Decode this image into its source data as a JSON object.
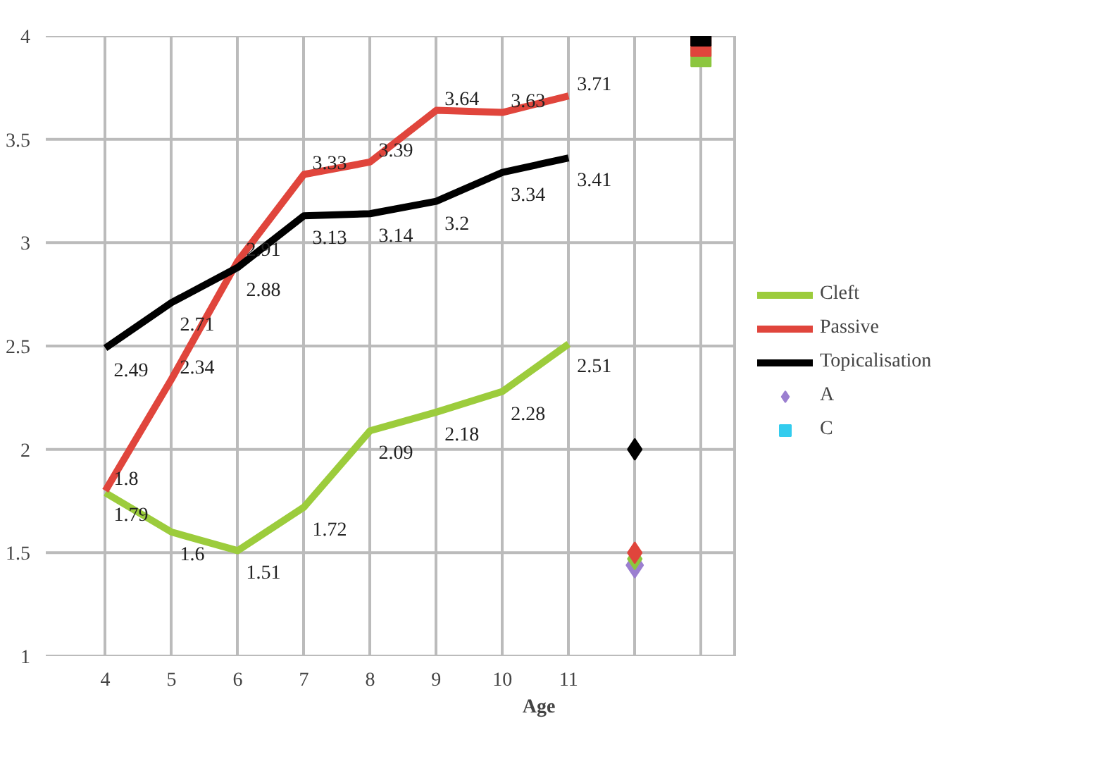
{
  "chart_data": {
    "type": "line",
    "xlabel": "Age",
    "categories": [
      "4",
      "5",
      "6",
      "7",
      "8",
      "9",
      "10",
      "11",
      null,
      null
    ],
    "ylim": [
      1,
      4
    ],
    "yticks": [
      1,
      1.5,
      2,
      2.5,
      3,
      3.5,
      4
    ],
    "grid": true,
    "legend": "right",
    "series": [
      {
        "name": "A",
        "type": "scatter",
        "marker": "diamond",
        "color": "#9b7fd0",
        "values": [
          null,
          null,
          null,
          null,
          null,
          null,
          null,
          null,
          1.44,
          null
        ]
      },
      {
        "name": "C",
        "type": "scatter",
        "marker": "square",
        "color": "#33ccee",
        "values": [
          null,
          null,
          null,
          null,
          null,
          null,
          null,
          null,
          null,
          null
        ]
      },
      {
        "type": "scatter",
        "marker": "diamond",
        "color": "#8cc63f",
        "values": [
          null,
          null,
          null,
          null,
          null,
          null,
          null,
          null,
          1.47,
          null
        ]
      },
      {
        "type": "scatter",
        "marker": "diamond",
        "color": "#e0453c",
        "values": [
          null,
          null,
          null,
          null,
          null,
          null,
          null,
          null,
          1.5,
          null
        ]
      },
      {
        "type": "scatter",
        "marker": "diamond",
        "color": "#000000",
        "values": [
          null,
          null,
          null,
          null,
          null,
          null,
          null,
          null,
          2.0,
          null
        ]
      },
      {
        "type": "scatter",
        "marker": "square",
        "color": "#8cc63f",
        "values": [
          null,
          null,
          null,
          null,
          null,
          null,
          null,
          null,
          null,
          3.9
        ]
      },
      {
        "type": "scatter",
        "marker": "square",
        "color": "#e0453c",
        "values": [
          null,
          null,
          null,
          null,
          null,
          null,
          null,
          null,
          null,
          3.95
        ]
      },
      {
        "type": "scatter",
        "marker": "square",
        "color": "#000000",
        "values": [
          null,
          null,
          null,
          null,
          null,
          null,
          null,
          null,
          null,
          4.0
        ]
      },
      {
        "name": "Cleft",
        "color": "#9ccc3c",
        "values": [
          1.79,
          1.6,
          1.51,
          1.72,
          2.09,
          2.18,
          2.28,
          2.51,
          null,
          null
        ],
        "value_labels": [
          "1.79",
          "1.6",
          "1.51",
          "1.72",
          "2.09",
          "2.18",
          "2.28",
          "2.51",
          null,
          null
        ]
      },
      {
        "name": "Passive",
        "color": "#e0453c",
        "values": [
          1.8,
          2.34,
          2.91,
          3.33,
          3.39,
          3.64,
          3.63,
          3.71,
          null,
          null
        ],
        "value_labels": [
          "1.8",
          "2.34",
          "2.91",
          "3.33",
          "3.39",
          "3.64",
          "3.63",
          "3.71",
          null,
          null
        ]
      },
      {
        "name": "Topicalisation",
        "color": "#000000",
        "values": [
          2.49,
          2.71,
          2.88,
          3.13,
          3.14,
          3.2,
          3.34,
          3.41,
          null,
          null
        ],
        "value_labels": [
          "2.49",
          "2.71",
          "2.88",
          "3.13",
          "3.14",
          "3.2",
          "3.34",
          "3.41",
          null,
          null
        ]
      }
    ]
  }
}
